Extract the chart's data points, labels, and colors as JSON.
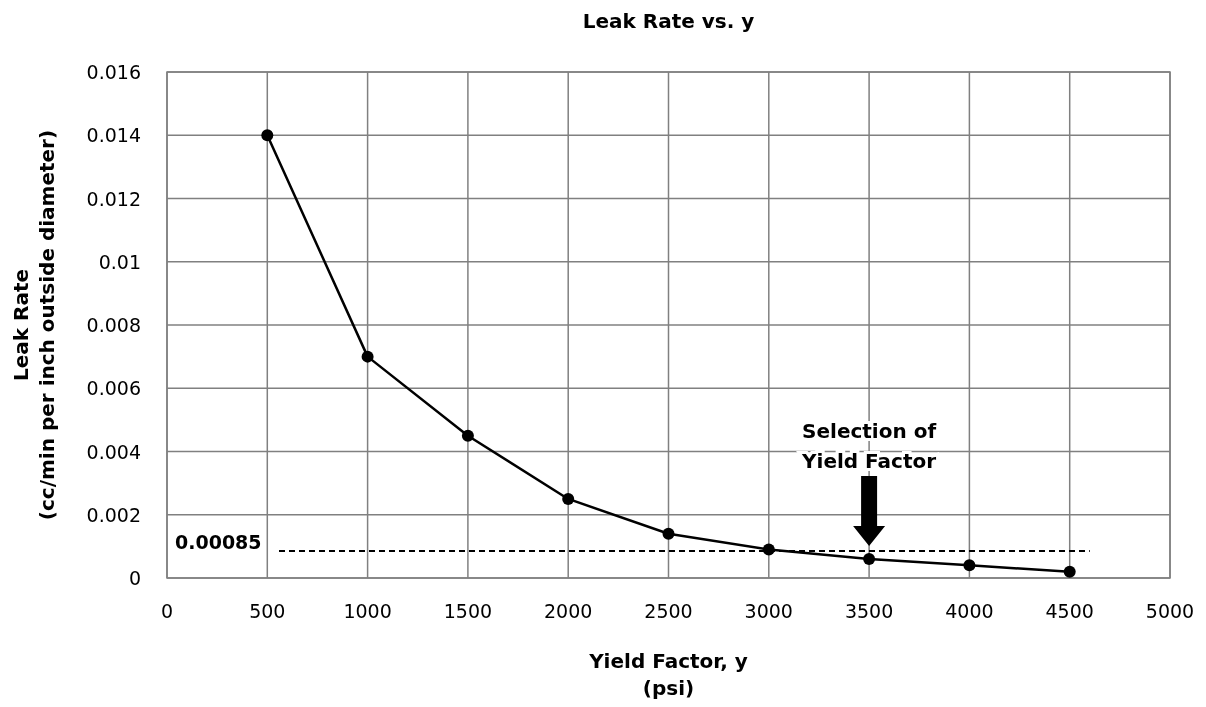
{
  "chart_data": {
    "type": "line",
    "title": "Leak Rate vs. y",
    "xlabel": "Yield Factor, y\n(psi)",
    "ylabel": "Leak Rate\n(cc/min per inch outside diameter)",
    "x": [
      500,
      1000,
      1500,
      2000,
      2500,
      3000,
      3500,
      4000,
      4500
    ],
    "series": [
      {
        "color": "#000000",
        "values": [
          0.014,
          0.007,
          0.0045,
          0.0025,
          0.0014,
          0.0009,
          0.0006,
          0.0004,
          0.0002
        ]
      }
    ],
    "xlim": [
      0,
      5000
    ],
    "xticks": [
      0,
      500,
      1000,
      1500,
      2000,
      2500,
      3000,
      3500,
      4000,
      4500,
      5000
    ],
    "ylim": [
      0,
      0.016
    ],
    "yticks": [
      0,
      0.002,
      0.004,
      0.006,
      0.008,
      0.01,
      0.012,
      0.014,
      0.016
    ],
    "grid": true,
    "marker": "circle",
    "line_style": "solid",
    "ref_lines": [
      {
        "axis": "y",
        "value": 0.00085,
        "label": "0.00085",
        "color": "#000000",
        "line_style": "dashed"
      }
    ],
    "annotations": [
      "Selection of\nYield Factor"
    ]
  }
}
